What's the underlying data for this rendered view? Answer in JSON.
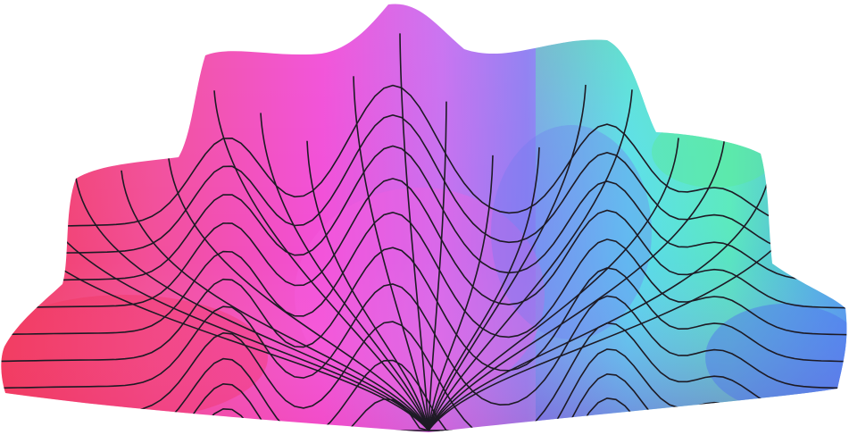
{
  "artwork": {
    "subject": "wavy-grid-surface",
    "colors": {
      "background": "#ffffff",
      "grid_line": "#1d1a24",
      "magenta": "#f24fd8",
      "pink": "#f5559e",
      "red": "#f23c5e",
      "violet": "#a67bf0",
      "cyan": "#5cf2ef",
      "green": "#5be896",
      "blue": "#4f86f0",
      "indigo": "#7f7ef2"
    }
  }
}
